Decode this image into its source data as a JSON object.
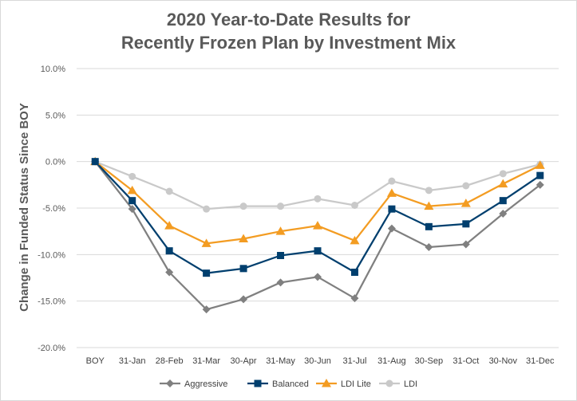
{
  "chart_data": {
    "type": "line",
    "title_line1": "2020 Year-to-Date Results for",
    "title_line2": "Recently Frozen Plan by Investment Mix",
    "xlabel": "",
    "ylabel": "Change in Funded Status Since BOY",
    "categories": [
      "BOY",
      "31-Jan",
      "28-Feb",
      "31-Mar",
      "30-Apr",
      "31-May",
      "30-Jun",
      "31-Jul",
      "31-Aug",
      "30-Sep",
      "31-Oct",
      "30-Nov",
      "31-Dec"
    ],
    "ylim": [
      -0.2,
      0.1
    ],
    "yticks": [
      0.1,
      0.05,
      0.0,
      -0.05,
      -0.1,
      -0.15,
      -0.2
    ],
    "ytick_labels": [
      "10.0%",
      "5.0%",
      "0.0%",
      "-5.0%",
      "-10.0%",
      "-15.0%",
      "-20.0%"
    ],
    "grid": "horizontal",
    "legend": "bottom",
    "series": [
      {
        "name": "Aggressive",
        "color": "#808080",
        "marker": "diamond",
        "values": [
          0.0,
          -0.051,
          -0.119,
          -0.159,
          -0.148,
          -0.13,
          -0.124,
          -0.147,
          -0.072,
          -0.092,
          -0.089,
          -0.056,
          -0.025
        ]
      },
      {
        "name": "Balanced",
        "color": "#003f6e",
        "marker": "square",
        "values": [
          0.0,
          -0.042,
          -0.096,
          -0.12,
          -0.115,
          -0.101,
          -0.096,
          -0.119,
          -0.051,
          -0.07,
          -0.067,
          -0.042,
          -0.015
        ]
      },
      {
        "name": "LDI Lite",
        "color": "#f39c22",
        "marker": "triangle",
        "values": [
          0.0,
          -0.031,
          -0.069,
          -0.088,
          -0.083,
          -0.075,
          -0.069,
          -0.085,
          -0.034,
          -0.048,
          -0.045,
          -0.024,
          -0.004
        ]
      },
      {
        "name": "LDI",
        "color": "#c9c9c9",
        "marker": "circle",
        "values": [
          0.0,
          -0.016,
          -0.032,
          -0.051,
          -0.048,
          -0.048,
          -0.04,
          -0.047,
          -0.021,
          -0.031,
          -0.026,
          -0.013,
          -0.003
        ]
      }
    ]
  }
}
